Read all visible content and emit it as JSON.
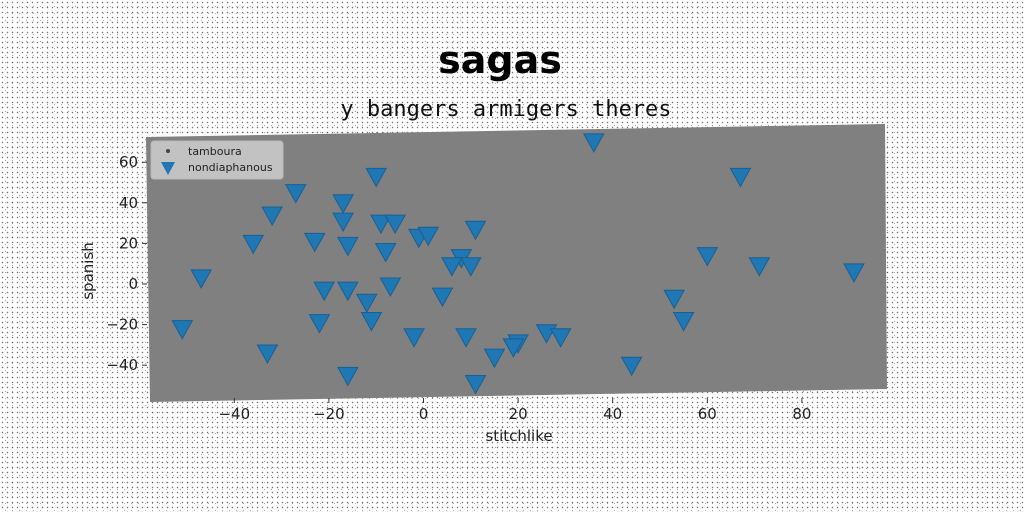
{
  "chart_data": {
    "type": "scatter",
    "title": "sagas",
    "subtitle": "y bangers armigers theres",
    "xlabel": "stitchlike",
    "ylabel": "spanish",
    "xlim": [
      -58,
      98
    ],
    "ylim": [
      -58,
      75
    ],
    "xticks": [
      -40,
      -20,
      0,
      20,
      40,
      60,
      80
    ],
    "yticks": [
      -40,
      -20,
      0,
      20,
      40,
      60
    ],
    "xtick_labels": [
      "−40",
      "−20",
      "0",
      "20",
      "40",
      "60",
      "80"
    ],
    "ytick_labels": [
      "−40",
      "−20",
      "0",
      "20",
      "40",
      "60"
    ],
    "grid": false,
    "legend_position": "top-left",
    "plot_background": "#808080",
    "series": [
      {
        "name": "tamboura",
        "marker": "dot",
        "color": "#444444",
        "points": []
      },
      {
        "name": "nondiaphanous",
        "marker": "triangle-down",
        "color": "#1f77b4",
        "points": [
          [
            36,
            70
          ],
          [
            -10,
            53
          ],
          [
            67,
            53
          ],
          [
            -27,
            45
          ],
          [
            -17,
            40
          ],
          [
            -32,
            34
          ],
          [
            -17,
            31
          ],
          [
            -9,
            30
          ],
          [
            -6,
            30
          ],
          [
            11,
            27
          ],
          [
            -1,
            23
          ],
          [
            1,
            24
          ],
          [
            -23,
            21
          ],
          [
            -36,
            20
          ],
          [
            -16,
            19
          ],
          [
            -8,
            16
          ],
          [
            8,
            13
          ],
          [
            60,
            14
          ],
          [
            6,
            9
          ],
          [
            10,
            9
          ],
          [
            71,
            9
          ],
          [
            91,
            6
          ],
          [
            -47,
            3
          ],
          [
            -7,
            -1
          ],
          [
            -21,
            -3
          ],
          [
            -16,
            -3
          ],
          [
            4,
            -6
          ],
          [
            53,
            -7
          ],
          [
            -12,
            -9
          ],
          [
            -22,
            -19
          ],
          [
            -11,
            -18
          ],
          [
            55,
            -18
          ],
          [
            -51,
            -22
          ],
          [
            -2,
            -26
          ],
          [
            9,
            -26
          ],
          [
            26,
            -24
          ],
          [
            29,
            -26
          ],
          [
            20,
            -29
          ],
          [
            19,
            -31
          ],
          [
            -33,
            -34
          ],
          [
            15,
            -36
          ],
          [
            44,
            -40
          ],
          [
            -16,
            -45
          ],
          [
            11,
            -49
          ]
        ]
      }
    ]
  }
}
